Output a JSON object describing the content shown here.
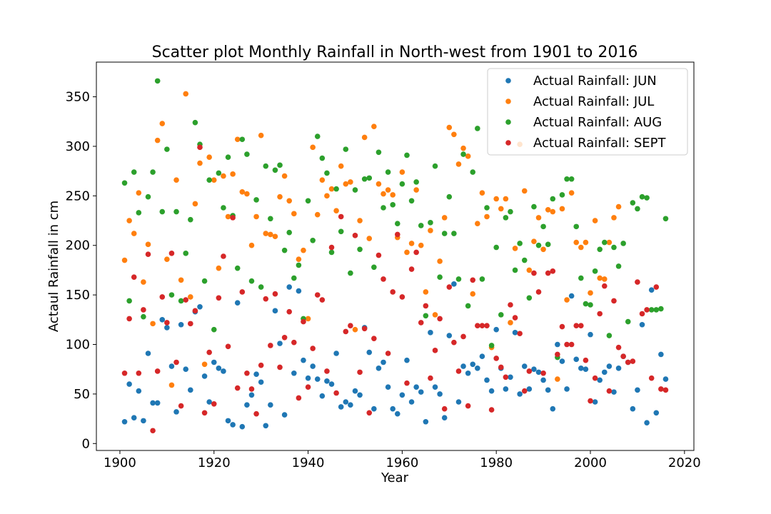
{
  "chart_data": {
    "type": "scatter",
    "title": "Scatter plot Monthly Rainfall in North-west from 1901 to 2016",
    "xlabel": "Year",
    "ylabel": "Actaul Rainfall in cm",
    "xlim": [
      1895,
      2022
    ],
    "ylim": [
      -7,
      385
    ],
    "xticks": [
      1900,
      1920,
      1940,
      1960,
      1980,
      2000,
      2020
    ],
    "yticks": [
      0,
      50,
      100,
      150,
      200,
      250,
      300,
      350
    ],
    "grid": false,
    "legend_position": "top-right",
    "x": [
      1901,
      1902,
      1903,
      1904,
      1905,
      1906,
      1907,
      1908,
      1909,
      1910,
      1911,
      1912,
      1913,
      1914,
      1915,
      1916,
      1917,
      1918,
      1919,
      1920,
      1921,
      1922,
      1923,
      1924,
      1925,
      1926,
      1927,
      1928,
      1929,
      1930,
      1931,
      1932,
      1933,
      1934,
      1935,
      1936,
      1937,
      1938,
      1939,
      1940,
      1941,
      1942,
      1943,
      1944,
      1945,
      1946,
      1947,
      1948,
      1949,
      1950,
      1951,
      1952,
      1953,
      1954,
      1955,
      1956,
      1957,
      1958,
      1959,
      1960,
      1961,
      1962,
      1963,
      1964,
      1965,
      1966,
      1967,
      1968,
      1969,
      1970,
      1971,
      1972,
      1973,
      1974,
      1975,
      1976,
      1977,
      1978,
      1979,
      1980,
      1981,
      1982,
      1983,
      1984,
      1985,
      1986,
      1987,
      1988,
      1989,
      1990,
      1991,
      1992,
      1993,
      1994,
      1995,
      1996,
      1997,
      1998,
      1999,
      2000,
      2001,
      2002,
      2003,
      2004,
      2005,
      2006,
      2007,
      2008,
      2009,
      2010,
      2011,
      2012,
      2013,
      2014,
      2015,
      2016
    ],
    "series": [
      {
        "name": "Actual Rainfall: JUN",
        "color": "#1f77b4",
        "values": [
          22,
          60,
          26,
          53,
          23,
          91,
          41,
          41,
          125,
          117,
          78,
          32,
          120,
          75,
          54,
          133,
          138,
          68,
          42,
          82,
          76,
          73,
          23,
          19,
          142,
          17,
          39,
          49,
          70,
          62,
          18,
          39,
          134,
          101,
          29,
          158,
          71,
          154,
          84,
          66,
          78,
          65,
          48,
          63,
          60,
          91,
          37,
          42,
          39,
          53,
          49,
          117,
          92,
          35,
          76,
          82,
          57,
          35,
          30,
          49,
          84,
          42,
          57,
          52,
          22,
          112,
          57,
          50,
          26,
          109,
          161,
          42,
          78,
          71,
          80,
          76,
          88,
          64,
          53,
          115,
          76,
          55,
          67,
          112,
          50,
          78,
          55,
          75,
          72,
          64,
          54,
          35,
          100,
          83,
          55,
          149,
          85,
          76,
          75,
          110,
          42,
          64,
          72,
          78,
          52,
          76,
          88,
          82,
          35,
          54,
          120,
          21,
          155,
          31,
          90,
          65
        ]
      },
      {
        "name": "Actual Rainfall: JUL",
        "color": "#ff7f0e",
        "values": [
          185,
          225,
          212,
          253,
          163,
          201,
          121,
          306,
          323,
          186,
          59,
          266,
          165,
          353,
          148,
          242,
          283,
          80,
          289,
          266,
          177,
          270,
          229,
          272,
          307,
          254,
          252,
          200,
          229,
          311,
          212,
          211,
          209,
          249,
          270,
          245,
          232,
          186,
          195,
          126,
          299,
          231,
          266,
          250,
          257,
          235,
          280,
          262,
          264,
          115,
          225,
          309,
          207,
          320,
          262,
          252,
          256,
          251,
          208,
          274,
          193,
          202,
          256,
          200,
          153,
          215,
          130,
          184,
          228,
          319,
          312,
          282,
          298,
          290,
          151,
          222,
          253,
          229,
          97,
          247,
          237,
          247,
          122,
          197,
          302,
          255,
          175,
          204,
          228,
          196,
          236,
          234,
          65,
          237,
          145,
          253,
          203,
          198,
          203,
          152,
          225,
          167,
          166,
          203,
          228,
          239
        ]
      },
      {
        "name": "Actual Rainfall: AUG",
        "color": "#2ca02c",
        "values": [
          263,
          144,
          274,
          233,
          128,
          249,
          274,
          366,
          234,
          297,
          150,
          234,
          144,
          192,
          226,
          324,
          302,
          164,
          266,
          115,
          273,
          238,
          289,
          230,
          177,
          307,
          292,
          164,
          246,
          158,
          280,
          227,
          276,
          281,
          195,
          213,
          167,
          180,
          126,
          245,
          205,
          310,
          288,
          273,
          193,
          257,
          214,
          297,
          172,
          256,
          196,
          267,
          268,
          178,
          294,
          238,
          274,
          241,
          222,
          262,
          291,
          245,
          264,
          220,
          129,
          223,
          280,
          168,
          212,
          249,
          212,
          166,
          292,
          139,
          274,
          318,
          166,
          238,
          99,
          198,
          130,
          228,
          234,
          175,
          202,
          185,
          147,
          239,
          200,
          219,
          201,
          247,
          87,
          251,
          267,
          267,
          219,
          167,
          141,
          140,
          174,
          196,
          203,
          109,
          198,
          179,
          202,
          123,
          243,
          237,
          249,
          248,
          135,
          135,
          136,
          227
        ]
      },
      {
        "name": "Actual Rainfall: SEPT",
        "color": "#d62728",
        "values": [
          71,
          126,
          168,
          71,
          135,
          191,
          13,
          73,
          148,
          122,
          192,
          82,
          38,
          145,
          121,
          134,
          299,
          31,
          92,
          40,
          147,
          189,
          98,
          228,
          56,
          153,
          71,
          55,
          30,
          79,
          146,
          99,
          151,
          77,
          107,
          133,
          102,
          46,
          123,
          57,
          96,
          150,
          145,
          73,
          198,
          51,
          229,
          113,
          119,
          210,
          72,
          116,
          31,
          106,
          190,
          166,
          91,
          153,
          211,
          148,
          61,
          176,
          193,
          122,
          139,
          66,
          94,
          126,
          35,
          158,
          102,
          73,
          108,
          38,
          165,
          119,
          119,
          119,
          34,
          86,
          77,
          67,
          140,
          127,
          111,
          53,
          73,
          172,
          153,
          71,
          172,
          174,
          90,
          118,
          100,
          100,
          119,
          119,
          84,
          43,
          66,
          131,
          159,
          53,
          144,
          97,
          88,
          82,
          83,
          163,
          131,
          135,
          66,
          158,
          55,
          54
        ]
      }
    ]
  }
}
